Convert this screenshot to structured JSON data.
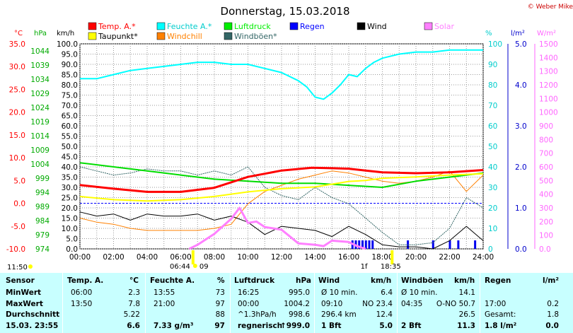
{
  "title": "Donnerstag, 15.03.2018",
  "credit": "© Weber Mike",
  "left_tick": "11:50",
  "legend": [
    {
      "label": "Temp. A.*",
      "color": "#ff0000"
    },
    {
      "label": "Feuchte A.*",
      "color": "#00ffff"
    },
    {
      "label": "Luftdruck",
      "color": "#00ee00"
    },
    {
      "label": "Regen",
      "color": "#0000ff"
    },
    {
      "label": "Wind",
      "color": "#000000"
    },
    {
      "label": "Solar",
      "color": "#ff80ff"
    },
    {
      "label": "Taupunkt*",
      "color": "#ffff00"
    },
    {
      "label": "Windchill",
      "color": "#ff8000"
    },
    {
      "label": "Windböen*",
      "color": "#336666"
    }
  ],
  "axis_units": {
    "temp": "°C",
    "pressure": "hPa",
    "wind": "km/h",
    "humidity": "%",
    "rain": "l/m²",
    "solar": "W/m²"
  },
  "markers": {
    "sunrise": "06:44",
    "sunrise_suffix": "09",
    "sunset": "18:35",
    "sunset_prefix": "1f"
  },
  "chart_data": {
    "type": "line",
    "x_hours": [
      0,
      2,
      4,
      6,
      8,
      10,
      12,
      14,
      16,
      18,
      20,
      22,
      24
    ],
    "x_labels": [
      "00:00",
      "02:00",
      "04:00",
      "06:00",
      "08:00",
      "10:00",
      "12:00",
      "14:00",
      "16:00",
      "18:00",
      "20:00",
      "22:00",
      "24:00"
    ],
    "axes": {
      "temp": {
        "min": -10,
        "max": 35,
        "ticks": [
          "35.0",
          "30.0",
          "25.0",
          "20.0",
          "15.0",
          "10.0",
          "5.0",
          "0.0",
          "-5.0",
          "-10.0"
        ]
      },
      "pressure": {
        "ticks": [
          "1044",
          "1039",
          "1034",
          "1029",
          "1024",
          "1019",
          "1014",
          "1009",
          "1004",
          "999",
          "994",
          "989",
          "984",
          "979",
          "974"
        ]
      },
      "wind": {
        "min": 0,
        "max": 100,
        "ticks": [
          "100.0",
          "95.0",
          "90.0",
          "85.0",
          "80.0",
          "75.0",
          "70.0",
          "65.0",
          "60.0",
          "55.0",
          "50.0",
          "45.0",
          "40.0",
          "35.0",
          "30.0",
          "25.0",
          "20.0",
          "15.0",
          "10.0",
          "5.0",
          "0.0"
        ]
      },
      "humidity": {
        "min": 0,
        "max": 100,
        "ticks": [
          "100",
          "90",
          "80",
          "70",
          "60",
          "50",
          "40",
          "30",
          "20",
          "10",
          "0"
        ]
      },
      "rain": {
        "min": 0,
        "max": 5,
        "ticks": [
          "5.0",
          "4.0",
          "3.0",
          "2.0",
          "1.0",
          "0.0"
        ]
      },
      "solar": {
        "min": 0,
        "max": 1500,
        "ticks": [
          "1500",
          "1400",
          "1300",
          "1200",
          "1100",
          "1000",
          "900",
          "800",
          "700",
          "600",
          "500",
          "400",
          "300",
          "200",
          "100",
          "0.0"
        ]
      }
    },
    "series": [
      {
        "name": "Temp. A.*",
        "axis": "temp",
        "color": "#ff0000",
        "width": 3,
        "x": [
          0,
          2,
          4,
          6,
          8,
          10,
          12,
          13.8,
          15,
          16,
          17,
          18,
          20,
          22,
          24
        ],
        "y": [
          4.0,
          3.2,
          2.5,
          2.5,
          3.4,
          5.8,
          7.2,
          7.8,
          7.7,
          7.6,
          7.2,
          6.8,
          6.6,
          6.8,
          7.3
        ]
      },
      {
        "name": "Taupunkt*",
        "axis": "temp",
        "color": "#ffff00",
        "width": 2,
        "x": [
          0,
          2,
          4,
          6,
          8,
          10,
          12,
          14,
          16,
          17,
          18,
          20,
          22,
          24
        ],
        "y": [
          1.5,
          0.8,
          0.5,
          0.8,
          1.5,
          2.5,
          3.2,
          3.6,
          4.8,
          5.0,
          5.5,
          5.8,
          6.2,
          6.5
        ]
      },
      {
        "name": "Feuchte A.*",
        "axis": "humidity",
        "color": "#00ffff",
        "width": 2,
        "x": [
          0,
          1,
          2,
          3,
          4,
          5,
          6,
          7,
          8,
          9,
          10,
          11,
          12,
          13,
          13.5,
          14,
          14.5,
          15,
          15.5,
          16,
          16.5,
          17,
          17.5,
          18,
          19,
          20,
          21,
          22,
          23,
          24
        ],
        "y": [
          83,
          83,
          85,
          87,
          88,
          89,
          90,
          91,
          91,
          90,
          90,
          88,
          86,
          82,
          79,
          74,
          73,
          76,
          80,
          85,
          84,
          88,
          91,
          93,
          95,
          96,
          96,
          97,
          97,
          97
        ]
      },
      {
        "name": "Luftdruck",
        "axis": "pressure_mapped",
        "color": "#00dd00",
        "width": 2,
        "x": [
          0,
          2,
          4,
          6,
          8,
          10,
          12,
          14,
          16,
          18,
          20,
          22,
          24
        ],
        "y": [
          42,
          40,
          38,
          36,
          34,
          33,
          32,
          32,
          31,
          30,
          33,
          35,
          37
        ]
      },
      {
        "name": "Wind",
        "axis": "wind",
        "color": "#000000",
        "width": 1,
        "x": [
          0,
          1,
          2,
          3,
          4,
          5,
          6,
          7,
          8,
          9,
          10,
          11,
          12,
          13,
          14,
          15,
          16,
          17,
          18,
          19,
          20,
          21,
          22,
          23,
          24
        ],
        "y": [
          18,
          16,
          17,
          14,
          17,
          16,
          16,
          17,
          14,
          16,
          13,
          7,
          11,
          10,
          9,
          6,
          11,
          7,
          2,
          1,
          1,
          0,
          4,
          11,
          4
        ]
      },
      {
        "name": "Windböen*",
        "axis": "wind",
        "color": "#336666",
        "width": 1,
        "x": [
          0,
          1,
          2,
          3,
          4,
          5,
          6,
          7,
          8,
          9,
          10,
          11,
          12,
          13,
          14,
          15,
          16,
          17,
          18,
          19,
          20,
          21,
          22,
          23,
          24
        ],
        "y": [
          40,
          38,
          36,
          37,
          39,
          38,
          38,
          36,
          38,
          36,
          40,
          30,
          26,
          24,
          30,
          25,
          22,
          15,
          8,
          2,
          2,
          3,
          10,
          25,
          20
        ]
      },
      {
        "name": "Windchill",
        "axis": "wind",
        "color": "#ff8000",
        "width": 1,
        "x": [
          0,
          1,
          2,
          3,
          4,
          5,
          6,
          7,
          8,
          9,
          10,
          11,
          12,
          13,
          14,
          15,
          16,
          17,
          18,
          19,
          20,
          21,
          22,
          23,
          24
        ],
        "y": [
          15,
          13,
          12,
          10,
          9,
          9,
          9,
          9,
          10,
          12,
          22,
          28,
          31,
          34,
          36,
          38,
          37,
          35,
          33,
          32,
          33,
          35,
          38,
          28,
          36
        ]
      },
      {
        "name": "Solar",
        "axis": "solar",
        "color": "#ff80ff",
        "width": 3,
        "x": [
          6.5,
          7,
          8,
          9,
          9.5,
          10,
          10.5,
          11,
          12,
          12.5,
          13,
          14,
          14.5,
          15,
          16,
          16.5,
          17
        ],
        "y": [
          0,
          30,
          110,
          220,
          300,
          190,
          200,
          160,
          140,
          90,
          40,
          30,
          20,
          60,
          50,
          20,
          0
        ]
      }
    ],
    "rain_bars_hours": [
      16.2,
      16.4,
      16.6,
      16.8,
      17.0,
      17.2,
      17.4,
      19.5,
      21.0,
      22.0,
      22.5,
      23.5
    ]
  },
  "stats": {
    "headers": [
      "Sensor",
      "Temp. A.",
      "°C",
      "Feuchte A.",
      "%",
      "Luftdruck",
      "hPa",
      "Wind",
      "km/h",
      "Windböen",
      "km/h",
      "Regen",
      "l/m²"
    ],
    "rows": [
      [
        "MinWert",
        "06:00",
        "2.3",
        "13:55",
        "73",
        "16:25",
        "995.0",
        "Ø 10 min.",
        "6.4",
        "Ø 10 min.",
        "14.1",
        "",
        ""
      ],
      [
        "MaxWert",
        "13:50",
        "7.8",
        "21:00",
        "97",
        "00:00",
        "1004.2",
        "09:10",
        "NO 23.4",
        "04:35",
        "O-NO 50.7",
        "17:00",
        "0.2"
      ],
      [
        "Durchschnitt",
        "",
        "5.22",
        "",
        "88",
        "^1.3hPa/h",
        "998.6",
        "296.4 km",
        "12.4",
        "",
        "26.5",
        "Gesamt:",
        "1.8"
      ],
      [
        "15.03. 23:55",
        "",
        "6.6",
        "7.33 g/m³",
        "97",
        "regnerisch",
        "↑999.0",
        "1 Bft",
        "5.0",
        "2 Bft",
        "11.3",
        "1.8 l/m²",
        "0.0"
      ]
    ]
  }
}
